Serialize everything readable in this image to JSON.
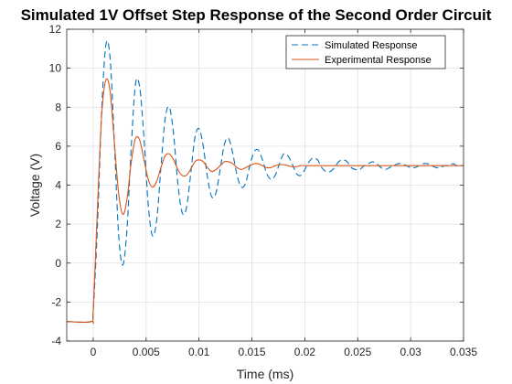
{
  "chart_data": {
    "type": "line",
    "title": "Simulated 1V Offset Step Response of the Second Order Circuit",
    "xlabel": "Time (ms)",
    "ylabel": "Voltage (V)",
    "xlim": [
      -0.0025,
      0.035
    ],
    "ylim": [
      -4,
      12
    ],
    "xticks": [
      0,
      0.005,
      0.01,
      0.015,
      0.02,
      0.025,
      0.03,
      0.035
    ],
    "xtick_labels": [
      "0",
      "0.005",
      "0.01",
      "0.015",
      "0.02",
      "0.025",
      "0.03",
      "0.035"
    ],
    "yticks": [
      -4,
      -2,
      0,
      2,
      4,
      6,
      8,
      10,
      12
    ],
    "ytick_labels": [
      "-4",
      "-2",
      "0",
      "2",
      "4",
      "6",
      "8",
      "10",
      "12"
    ],
    "grid": true,
    "legend_position": "top-right",
    "series": [
      {
        "name": "Simulated Response",
        "color": "#0072BD",
        "style": "dashed",
        "x": [
          -0.0025,
          -0.0002,
          0.0,
          0.0004,
          0.0008,
          0.0012,
          0.0016,
          0.002,
          0.0024,
          0.0028,
          0.0032,
          0.0036,
          0.004,
          0.0044,
          0.0048,
          0.0052,
          0.0056,
          0.006,
          0.0064,
          0.0068,
          0.0072,
          0.0076,
          0.008,
          0.0084,
          0.0088,
          0.0092,
          0.0096,
          0.01,
          0.0104,
          0.0108,
          0.0112,
          0.0116,
          0.012,
          0.0124,
          0.0128,
          0.0132,
          0.0136,
          0.014,
          0.0144,
          0.0148,
          0.0152,
          0.0156,
          0.016,
          0.0164,
          0.0168,
          0.0172,
          0.0176,
          0.018,
          0.0184,
          0.0188,
          0.0192,
          0.0196,
          0.02,
          0.0204,
          0.0208,
          0.0212,
          0.0216,
          0.022,
          0.0224,
          0.0228,
          0.0232,
          0.0236,
          0.024,
          0.0244,
          0.0248,
          0.0252,
          0.0256,
          0.026,
          0.0264,
          0.0268,
          0.0272,
          0.0276,
          0.028,
          0.0284,
          0.0288,
          0.0292,
          0.0296,
          0.03,
          0.0304,
          0.0308,
          0.0312,
          0.0316,
          0.032,
          0.0324,
          0.0328,
          0.0332,
          0.0336,
          0.034,
          0.0344,
          0.0348,
          0.035
        ],
        "y": [
          -3.0,
          -3.0,
          -2.5,
          1.9,
          7.8,
          11.2,
          10.5,
          6.2,
          1.5,
          -0.1,
          1.8,
          6.0,
          9.2,
          9.0,
          6.4,
          3.0,
          1.4,
          2.2,
          4.9,
          7.4,
          8.0,
          6.6,
          4.1,
          2.6,
          2.8,
          4.5,
          6.4,
          6.9,
          6.0,
          4.4,
          3.4,
          3.6,
          4.8,
          6.1,
          6.4,
          5.6,
          4.5,
          3.9,
          4.1,
          5.0,
          5.7,
          5.8,
          5.3,
          4.6,
          4.3,
          4.5,
          5.1,
          5.6,
          5.5,
          5.1,
          4.6,
          4.5,
          4.8,
          5.2,
          5.4,
          5.3,
          4.9,
          4.7,
          4.7,
          4.9,
          5.2,
          5.3,
          5.2,
          4.9,
          4.8,
          4.8,
          5.0,
          5.1,
          5.2,
          5.1,
          4.9,
          4.8,
          4.9,
          5.0,
          5.1,
          5.1,
          5.0,
          4.9,
          4.9,
          5.0,
          5.1,
          5.1,
          5.0,
          4.9,
          4.9,
          5.0,
          5.0,
          5.1,
          5.0,
          5.0,
          5.0
        ]
      },
      {
        "name": "Experimental Response",
        "color": "#D95319",
        "style": "solid",
        "x": [
          -0.0025,
          -0.0002,
          0.0,
          0.0004,
          0.0008,
          0.0012,
          0.0016,
          0.002,
          0.0024,
          0.0028,
          0.0032,
          0.0036,
          0.004,
          0.0044,
          0.0048,
          0.0052,
          0.0056,
          0.006,
          0.0064,
          0.0068,
          0.0072,
          0.0076,
          0.008,
          0.0084,
          0.0088,
          0.0092,
          0.0096,
          0.01,
          0.0104,
          0.0108,
          0.0112,
          0.0116,
          0.012,
          0.0124,
          0.0128,
          0.0132,
          0.0136,
          0.014,
          0.0144,
          0.0148,
          0.0152,
          0.0156,
          0.016,
          0.0164,
          0.0168,
          0.0172,
          0.0176,
          0.018,
          0.0184,
          0.0188,
          0.0192,
          0.0196,
          0.02,
          0.021,
          0.022,
          0.023,
          0.024,
          0.025,
          0.026,
          0.027,
          0.028,
          0.029,
          0.03,
          0.031,
          0.032,
          0.033,
          0.034,
          0.035
        ],
        "y": [
          -3.0,
          -3.0,
          -2.5,
          2.8,
          7.6,
          9.4,
          8.8,
          6.2,
          3.6,
          2.5,
          3.3,
          5.2,
          6.4,
          6.3,
          5.3,
          4.3,
          3.9,
          4.2,
          4.9,
          5.5,
          5.6,
          5.3,
          4.8,
          4.5,
          4.5,
          4.8,
          5.2,
          5.3,
          5.2,
          4.9,
          4.7,
          4.8,
          5.0,
          5.2,
          5.2,
          5.1,
          4.9,
          4.8,
          4.9,
          5.0,
          5.1,
          5.1,
          5.0,
          4.9,
          4.9,
          5.0,
          5.05,
          5.05,
          5.0,
          4.95,
          4.95,
          5.0,
          5.0,
          5.0,
          5.0,
          5.0,
          5.0,
          5.0,
          5.0,
          5.0,
          5.0,
          5.0,
          5.0,
          5.0,
          5.0,
          5.0,
          5.0,
          5.0
        ]
      }
    ]
  }
}
